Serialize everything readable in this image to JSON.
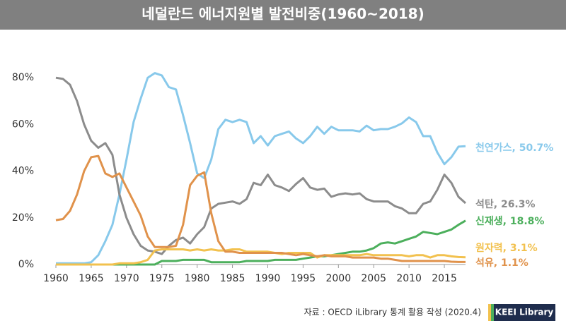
{
  "chart_data": {
    "type": "line",
    "title": "네덜란드 에너지원별 발전비중(1960~2018)",
    "source": "자료 : OECD iLibrary 통계 활용 작성 (2020.4)",
    "logo": "KEEI Library",
    "x": [
      1960,
      1961,
      1962,
      1963,
      1964,
      1965,
      1966,
      1967,
      1968,
      1969,
      1970,
      1971,
      1972,
      1973,
      1974,
      1975,
      1976,
      1977,
      1978,
      1979,
      1980,
      1981,
      1982,
      1983,
      1984,
      1985,
      1986,
      1987,
      1988,
      1989,
      1990,
      1991,
      1992,
      1993,
      1994,
      1995,
      1996,
      1997,
      1998,
      1999,
      2000,
      2001,
      2002,
      2003,
      2004,
      2005,
      2006,
      2007,
      2008,
      2009,
      2010,
      2011,
      2012,
      2013,
      2014,
      2015,
      2016,
      2017,
      2018
    ],
    "xlim": [
      1960,
      2018
    ],
    "xticks": [
      1960,
      1965,
      1970,
      1975,
      1980,
      1985,
      1990,
      1995,
      2000,
      2005,
      2010,
      2015
    ],
    "ylim": [
      0,
      84
    ],
    "yticks": [
      {
        "value": 0,
        "label": "0%"
      },
      {
        "value": 20,
        "label": "20%"
      },
      {
        "value": 40,
        "label": "40%"
      },
      {
        "value": 60,
        "label": "60%"
      },
      {
        "value": 80,
        "label": "80%"
      }
    ],
    "grid": false,
    "series": [
      {
        "name": "천연가스, 50.7%",
        "color": "#88c9eb",
        "values": [
          0.5,
          0.5,
          0.5,
          0.5,
          0.5,
          1,
          4,
          10,
          17,
          30,
          45,
          61,
          71,
          80,
          82,
          81,
          76,
          75,
          64,
          52,
          39,
          37,
          45,
          58,
          62,
          61,
          62,
          61,
          52,
          55,
          51,
          55,
          56,
          57,
          54,
          52,
          55,
          59,
          56,
          59,
          57.5,
          57.5,
          57.5,
          57,
          59.5,
          57.5,
          58,
          58,
          59,
          60.5,
          63,
          61,
          55,
          55,
          48,
          43,
          46,
          50.5,
          50.7
        ]
      },
      {
        "name": "석탄, 26.3%",
        "color": "#8c8c8c",
        "values": [
          80,
          79.5,
          77,
          70,
          60,
          53,
          50,
          52,
          47,
          30,
          20,
          13,
          8,
          6,
          5.5,
          4.5,
          8,
          10.5,
          11.5,
          9,
          13,
          16,
          24,
          26,
          26.5,
          27,
          26,
          28,
          35,
          34,
          38.5,
          34,
          33,
          31.5,
          34.5,
          37,
          33,
          32,
          32.5,
          29,
          30,
          30.5,
          30,
          30.5,
          28,
          27,
          27,
          27,
          25,
          24,
          22,
          22,
          26,
          27,
          32,
          38.5,
          35,
          29,
          26.3
        ]
      },
      {
        "name": "신재생, 18.8%",
        "color": "#4caf5c",
        "values": [
          0,
          0,
          0,
          0,
          0,
          0,
          0,
          0,
          0,
          0,
          0,
          0,
          0,
          0,
          0,
          1.5,
          1.5,
          1.5,
          2,
          2,
          2,
          2,
          1,
          1,
          1,
          1,
          1,
          1.5,
          1.5,
          1.5,
          1.5,
          2,
          2,
          2,
          2,
          2.5,
          3,
          3.5,
          3.5,
          4,
          4.5,
          5,
          5.5,
          5.5,
          6,
          7,
          9,
          9.5,
          9,
          10,
          11,
          12,
          14,
          13.5,
          13,
          14,
          15,
          17,
          18.8
        ]
      },
      {
        "name": "원자력, 3.1%",
        "color": "#f2c14e",
        "values": [
          0,
          0,
          0,
          0,
          0,
          0,
          0,
          0,
          0,
          0.5,
          0.5,
          0.5,
          1,
          2,
          6,
          6.5,
          6.5,
          6.5,
          6.5,
          6,
          6.5,
          6,
          6.5,
          6,
          6,
          6.5,
          6.5,
          5.5,
          5.5,
          5.5,
          5.5,
          5,
          4.5,
          5,
          5,
          5,
          5,
          3,
          4,
          4,
          4,
          4,
          4,
          4,
          4.5,
          4,
          4,
          4,
          4,
          4,
          3.5,
          4,
          4,
          3,
          4,
          4,
          3.5,
          3.2,
          3.1
        ]
      },
      {
        "name": "석유, 1.1%",
        "color": "#e0924b",
        "values": [
          19,
          19.5,
          23,
          30,
          40,
          46,
          46.5,
          39,
          37.5,
          39,
          33,
          27,
          21,
          12,
          7.5,
          7.5,
          7.5,
          8,
          17,
          34,
          38,
          39.5,
          22,
          10,
          5.5,
          5.5,
          5,
          5,
          5,
          5,
          5,
          5,
          5,
          4.5,
          4,
          4.5,
          4,
          3.5,
          4,
          3.5,
          3.5,
          3.5,
          3,
          3,
          3,
          3,
          2.5,
          2.5,
          2,
          1.5,
          1.5,
          1.5,
          1.5,
          1.5,
          1.5,
          1.5,
          1.2,
          1.1,
          1.1
        ]
      }
    ]
  }
}
